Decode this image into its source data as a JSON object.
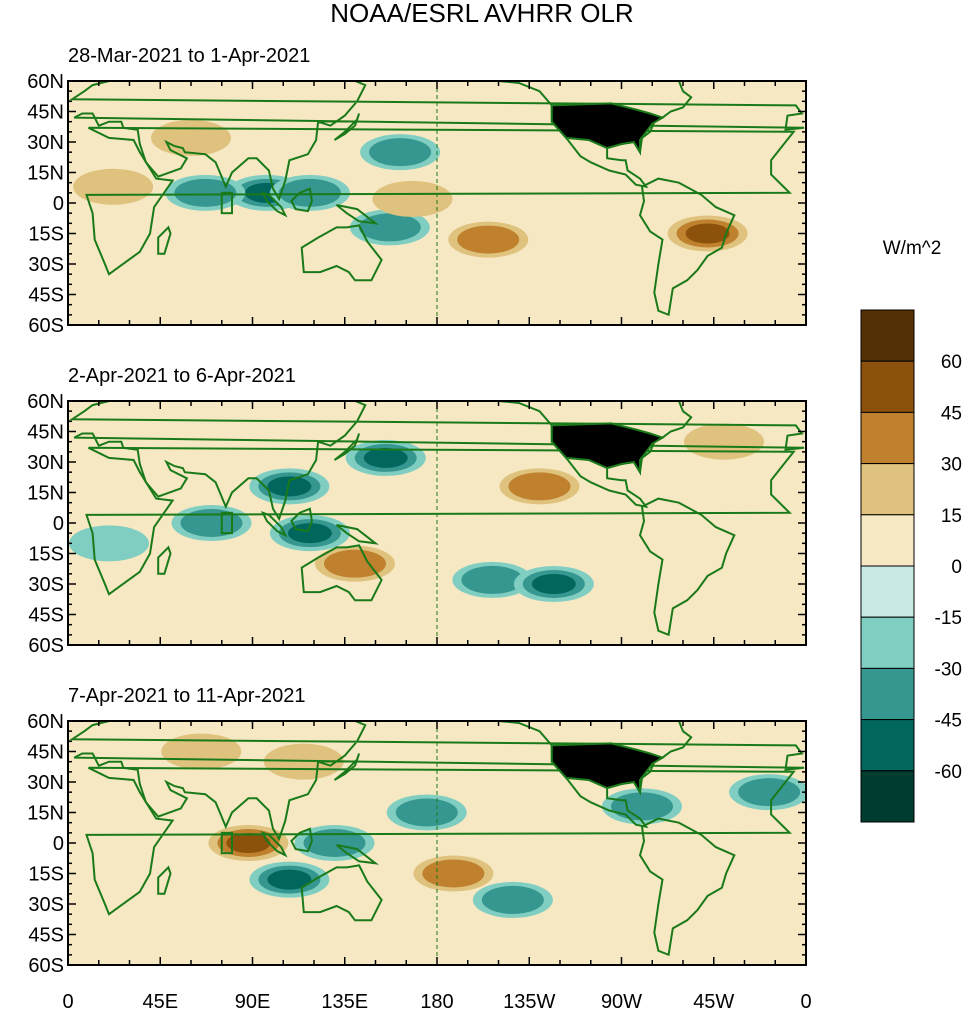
{
  "figure": {
    "title": "NOAA/ESRL AVHRR OLR",
    "units_label": "W/m^2"
  },
  "panels": [
    {
      "id": "p1",
      "period": "28-Mar-2021 to 1-Apr-2021"
    },
    {
      "id": "p2",
      "period": "2-Apr-2021 to 6-Apr-2021"
    },
    {
      "id": "p3",
      "period": "7-Apr-2021 to 11-Apr-2021"
    }
  ],
  "axes": {
    "lat_labels": [
      "60N",
      "45N",
      "30N",
      "15N",
      "0",
      "15S",
      "30S",
      "45S",
      "60S"
    ],
    "lat_values": [
      60,
      45,
      30,
      15,
      0,
      -15,
      -30,
      -45,
      -60
    ],
    "lon_labels": [
      "0",
      "45E",
      "90E",
      "135E",
      "180",
      "135W",
      "90W",
      "45W",
      "0"
    ],
    "lon_values": [
      0,
      45,
      90,
      135,
      180,
      225,
      270,
      315,
      360
    ]
  },
  "colorbar": {
    "labels": [
      "60",
      "45",
      "30",
      "15",
      "0",
      "-15",
      "-30",
      "-45",
      "-60"
    ],
    "levels": [
      60,
      45,
      30,
      15,
      0,
      -15,
      -30,
      -45,
      -60
    ],
    "colors": [
      "#543005",
      "#8c510a",
      "#bf812d",
      "#dfc27d",
      "#f6e8c3",
      "#c7eae5",
      "#80cdc1",
      "#35978f",
      "#01665e",
      "#003c30"
    ]
  },
  "chart_data": {
    "type": "heatmap",
    "title": "NOAA/ESRL AVHRR OLR",
    "variable": "OLR anomaly",
    "units": "W/m^2",
    "xlabel": "",
    "ylabel": "",
    "xlim": [
      0,
      360
    ],
    "ylim": [
      -60,
      60
    ],
    "contour_levels": [
      -60,
      -45,
      -30,
      -15,
      0,
      15,
      30,
      45,
      60
    ],
    "dateline_marker": 180,
    "panels": [
      {
        "period": "28-Mar-2021 to 1-Apr-2021",
        "anomalies": [
          {
            "lon": 97,
            "lat": 5,
            "value": -50
          },
          {
            "lon": 67,
            "lat": 5,
            "value": -40
          },
          {
            "lon": 118,
            "lat": 5,
            "value": -35
          },
          {
            "lon": 157,
            "lat": -12,
            "value": -40
          },
          {
            "lon": 162,
            "lat": 25,
            "value": -40
          },
          {
            "lon": 168,
            "lat": 2,
            "value": 25
          },
          {
            "lon": 205,
            "lat": -18,
            "value": 30
          },
          {
            "lon": 312,
            "lat": -15,
            "value": 45
          },
          {
            "lon": 60,
            "lat": 32,
            "value": 25
          },
          {
            "lon": 22,
            "lat": 8,
            "value": 22
          }
        ]
      },
      {
        "period": "2-Apr-2021 to 6-Apr-2021",
        "anomalies": [
          {
            "lon": 108,
            "lat": 18,
            "value": -45
          },
          {
            "lon": 118,
            "lat": -5,
            "value": -45
          },
          {
            "lon": 140,
            "lat": -20,
            "value": 35
          },
          {
            "lon": 155,
            "lat": 32,
            "value": -45
          },
          {
            "lon": 207,
            "lat": -28,
            "value": -40
          },
          {
            "lon": 237,
            "lat": -30,
            "value": -45
          },
          {
            "lon": 230,
            "lat": 18,
            "value": 30
          },
          {
            "lon": 70,
            "lat": 0,
            "value": -30
          },
          {
            "lon": 320,
            "lat": 40,
            "value": 25
          },
          {
            "lon": 20,
            "lat": -10,
            "value": -25
          }
        ]
      },
      {
        "period": "7-Apr-2021 to 11-Apr-2021",
        "anomalies": [
          {
            "lon": 88,
            "lat": 0,
            "value": 45
          },
          {
            "lon": 130,
            "lat": 0,
            "value": -35
          },
          {
            "lon": 108,
            "lat": -18,
            "value": -50
          },
          {
            "lon": 175,
            "lat": 15,
            "value": -35
          },
          {
            "lon": 188,
            "lat": -15,
            "value": 40
          },
          {
            "lon": 217,
            "lat": -28,
            "value": -40
          },
          {
            "lon": 280,
            "lat": 18,
            "value": -40
          },
          {
            "lon": 65,
            "lat": 45,
            "value": 25
          },
          {
            "lon": 115,
            "lat": 40,
            "value": 25
          },
          {
            "lon": 342,
            "lat": 25,
            "value": -30
          }
        ]
      }
    ]
  }
}
